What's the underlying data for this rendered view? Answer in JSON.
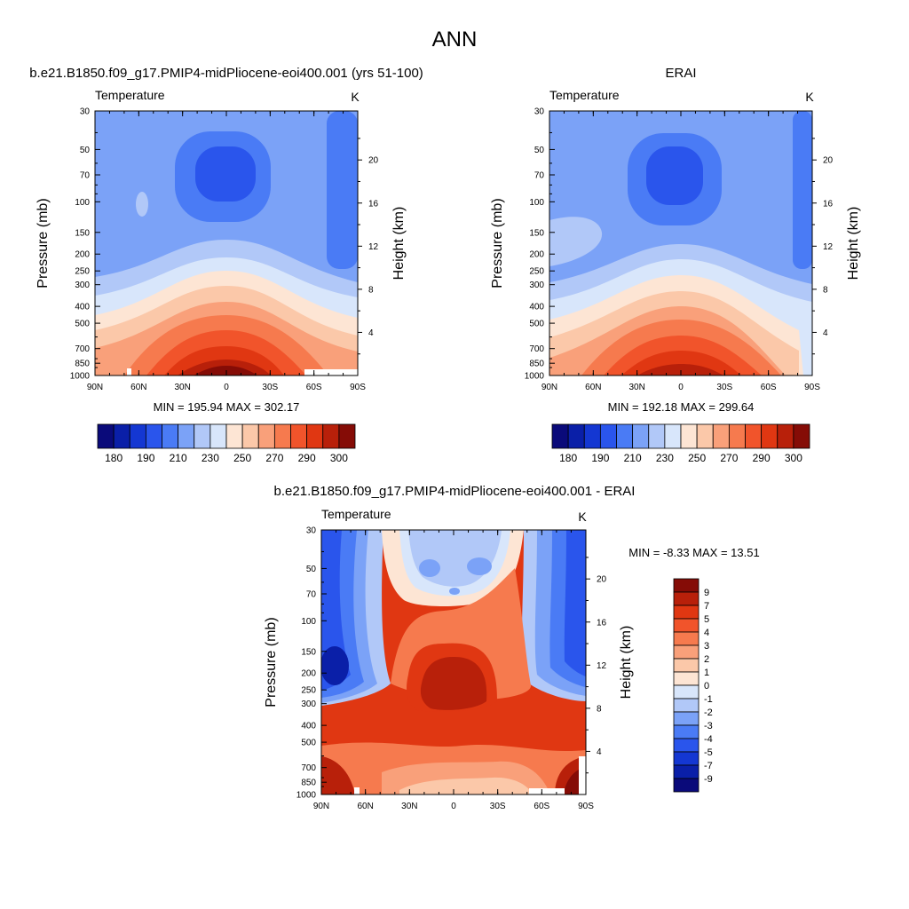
{
  "figure": {
    "title": "ANN"
  },
  "chart_data": [
    {
      "type": "heatmap",
      "panel_title": "b.e21.B1850.f09_g17.PMIP4-midPliocene-eoi400.001 (yrs 51-100)",
      "variable_label": "Temperature",
      "units_label": "K",
      "ylabel": "Pressure (mb)",
      "y2label": "Height (km)",
      "stats_text": "MIN = 195.94  MAX = 302.17",
      "x_ticks": [
        "90N",
        "60N",
        "30N",
        "0",
        "30S",
        "60S",
        "90S"
      ],
      "y_ticks": [
        "30",
        "50",
        "70",
        "100",
        "150",
        "200",
        "250",
        "300",
        "400",
        "500",
        "700",
        "850",
        "1000"
      ],
      "y2_ticks": [
        "20",
        "16",
        "12",
        "8",
        "4"
      ],
      "y_scale": "log pressure (reversed)",
      "colorbar_orientation": "horizontal",
      "colorbar_labels": [
        "180",
        "190",
        "210",
        "230",
        "250",
        "270",
        "290",
        "300"
      ],
      "min": 195.94,
      "max": 302.17
    },
    {
      "type": "heatmap",
      "panel_title": "ERAI",
      "variable_label": "Temperature",
      "units_label": "K",
      "ylabel": "Pressure (mb)",
      "y2label": "Height (km)",
      "stats_text": "MIN = 192.18  MAX = 299.64",
      "x_ticks": [
        "90N",
        "60N",
        "30N",
        "0",
        "30S",
        "60S",
        "90S"
      ],
      "y_ticks": [
        "30",
        "50",
        "70",
        "100",
        "150",
        "200",
        "250",
        "300",
        "400",
        "500",
        "700",
        "850",
        "1000"
      ],
      "y2_ticks": [
        "20",
        "16",
        "12",
        "8",
        "4"
      ],
      "y_scale": "log pressure (reversed)",
      "colorbar_orientation": "horizontal",
      "colorbar_labels": [
        "180",
        "190",
        "210",
        "230",
        "250",
        "270",
        "290",
        "300"
      ],
      "min": 192.18,
      "max": 299.64
    },
    {
      "type": "heatmap",
      "panel_title": "b.e21.B1850.f09_g17.PMIP4-midPliocene-eoi400.001 - ERAI",
      "variable_label": "Temperature",
      "units_label": "K",
      "ylabel": "Pressure (mb)",
      "y2label": "Height (km)",
      "stats_text": "MIN =  -8.33  MAX =  13.51",
      "x_ticks": [
        "90N",
        "60N",
        "30N",
        "0",
        "30S",
        "60S",
        "90S"
      ],
      "y_ticks": [
        "30",
        "50",
        "70",
        "100",
        "150",
        "200",
        "250",
        "300",
        "400",
        "500",
        "700",
        "850",
        "1000"
      ],
      "y2_ticks": [
        "20",
        "16",
        "12",
        "8",
        "4"
      ],
      "y_scale": "log pressure (reversed)",
      "colorbar_orientation": "vertical",
      "colorbar_labels": [
        "9",
        "7",
        "5",
        "4",
        "3",
        "2",
        "1",
        "0",
        "-1",
        "-2",
        "-3",
        "-4",
        "-5",
        "-7",
        "-9"
      ],
      "min": -8.33,
      "max": 13.51
    }
  ],
  "colormap": {
    "abs": [
      "#0a0a7a",
      "#0a1fa8",
      "#1437d2",
      "#2a55ec",
      "#4a7bf5",
      "#7ba2f7",
      "#b1c8f8",
      "#d8e6fb",
      "#fde5d4",
      "#fbc8a9",
      "#f9a07a",
      "#f67a4e",
      "#f1542b",
      "#e03712",
      "#b8200a",
      "#850c06"
    ],
    "diff": [
      "#850c06",
      "#b8200a",
      "#e03712",
      "#f1542b",
      "#f67a4e",
      "#f9a07a",
      "#fbc8a9",
      "#fde5d4",
      "#d8e6fb",
      "#b1c8f8",
      "#7ba2f7",
      "#4a7bf5",
      "#2a55ec",
      "#1437d2",
      "#0a1fa8",
      "#0a0a7a"
    ]
  }
}
